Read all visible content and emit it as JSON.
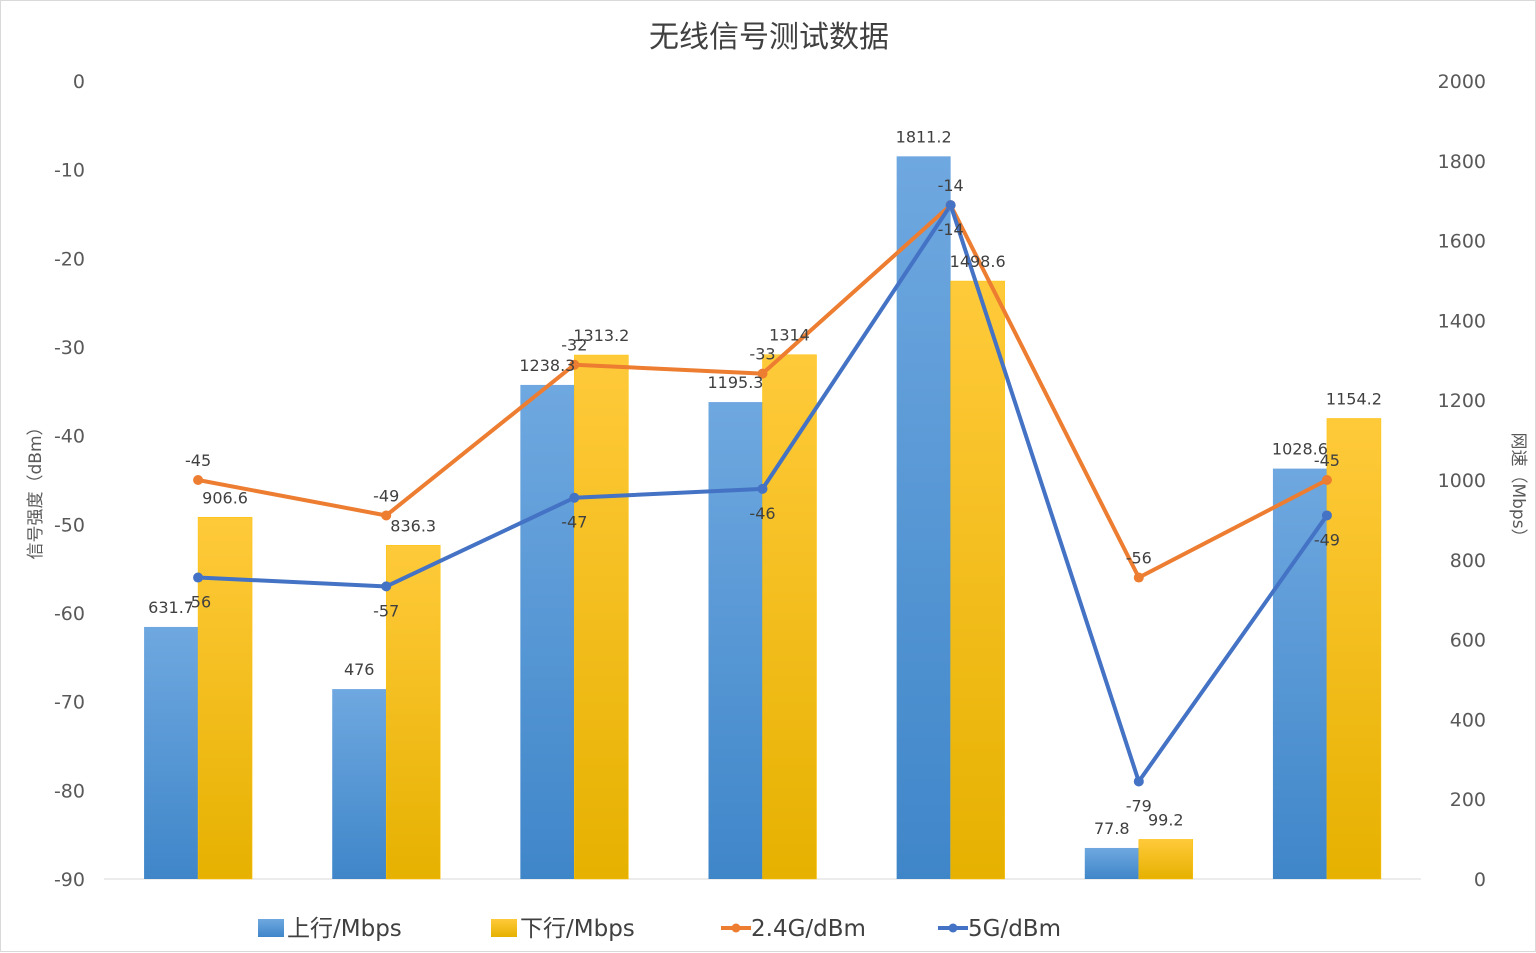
{
  "chart_data": {
    "type": "bar",
    "title": "无线信号测试数据",
    "ylabel_left": "信号强度（dBm）",
    "ylabel_right": "网速（Mbps）",
    "y_left_lim": [
      -90,
      0
    ],
    "y_left_ticks": [
      "0",
      "-10",
      "-20",
      "-30",
      "-40",
      "-50",
      "-60",
      "-70",
      "-80",
      "-90"
    ],
    "y_right_lim": [
      0,
      2000
    ],
    "y_right_ticks": [
      "2000",
      "1800",
      "1600",
      "1400",
      "1200",
      "1000",
      "800",
      "600",
      "400",
      "200",
      "0"
    ],
    "categories": [
      "",
      "",
      "",
      "",
      "",
      "",
      ""
    ],
    "grid": false,
    "legend_position": "bottom",
    "series": [
      {
        "name": "上行/Mbps",
        "type": "bar",
        "axis": "right",
        "color": "#5b9bd5",
        "values": [
          631.7,
          476,
          1238.3,
          1195.3,
          1811.2,
          77.8,
          1028.6
        ],
        "labels": [
          "631.7",
          "476",
          "1238.3",
          "1195.3",
          "1811.2",
          "77.8",
          "1028.6"
        ]
      },
      {
        "name": "下行/Mbps",
        "type": "bar",
        "axis": "right",
        "color": "#ffc000",
        "values": [
          906.6,
          836.3,
          1313.2,
          1314,
          1498.6,
          99.2,
          1154.2
        ],
        "labels": [
          "906.6",
          "836.3",
          "1313.2",
          "1314",
          "1498.6",
          "99.2",
          "1154.2"
        ]
      },
      {
        "name": "2.4G/dBm",
        "type": "line",
        "axis": "left",
        "color": "#ed7d31",
        "values": [
          -45,
          -49,
          -32,
          -33,
          -14,
          -56,
          -45
        ],
        "labels": [
          "-45",
          "-49",
          "-32",
          "-33",
          "-14",
          "-56",
          "-45"
        ]
      },
      {
        "name": "5G/dBm",
        "type": "line",
        "axis": "left",
        "color": "#4472c4",
        "values": [
          -56,
          -57,
          -47,
          -46,
          -14,
          -79,
          -49
        ],
        "labels": [
          "-56",
          "-57",
          "-47",
          "-46",
          "-14",
          "-79",
          "-49"
        ]
      }
    ]
  }
}
